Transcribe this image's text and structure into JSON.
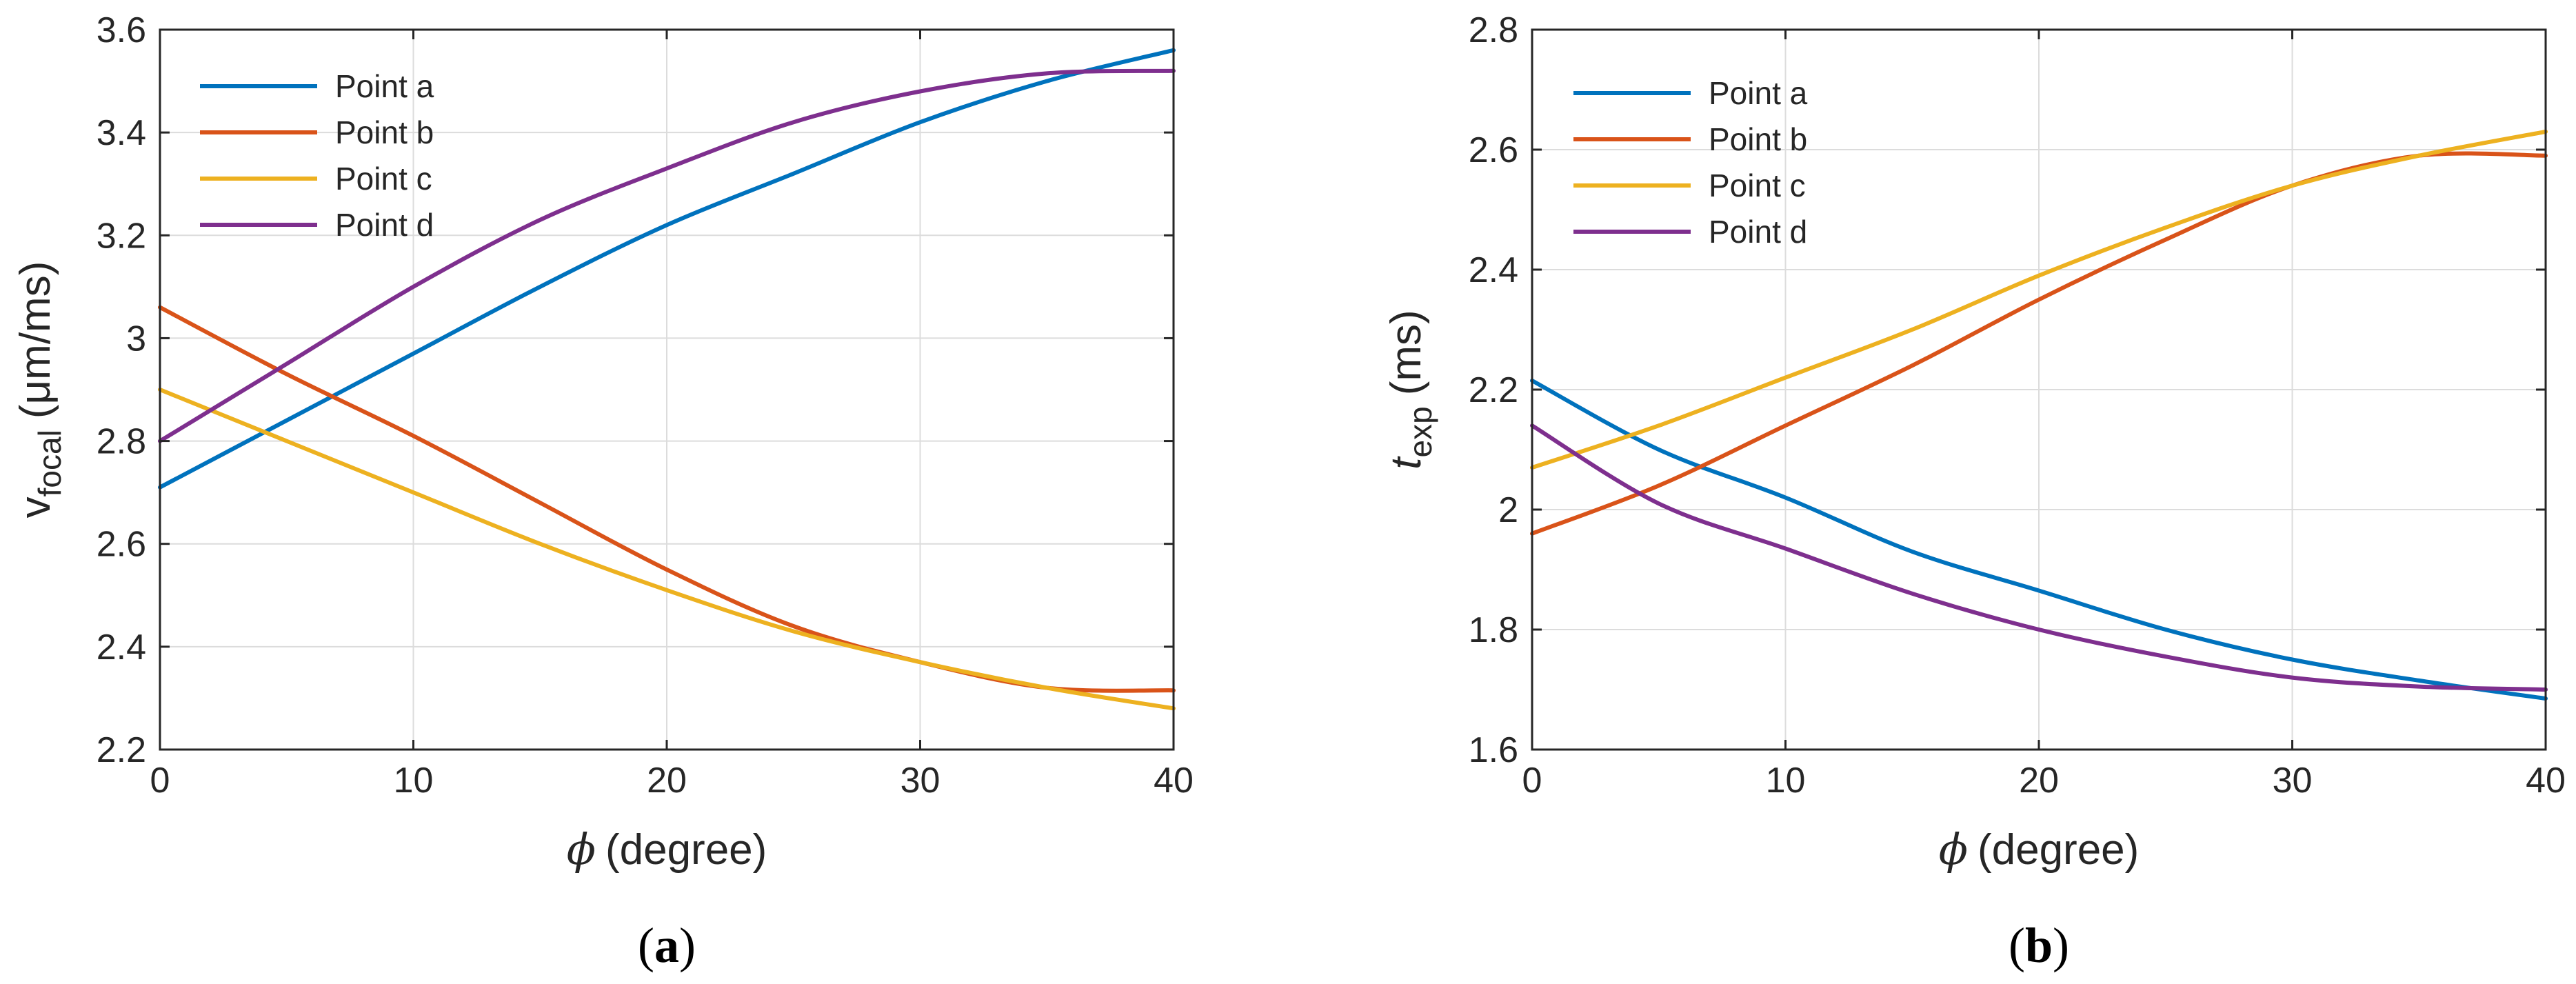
{
  "chart_data": [
    {
      "type": "line",
      "subcaption": "a",
      "xlabel_symbol": "ϕ",
      "xlabel_text": "(degree)",
      "ylabel_main": "v",
      "ylabel_sub": "focal",
      "ylabel_unit": "(μm/ms)",
      "xlim": [
        0,
        40
      ],
      "ylim": [
        2.2,
        3.6
      ],
      "xticks": [
        0,
        10,
        20,
        30,
        40
      ],
      "xtick_labels": [
        "0",
        "10",
        "20",
        "30",
        "40"
      ],
      "yticks": [
        2.2,
        2.4,
        2.6,
        2.8,
        3.0,
        3.2,
        3.4,
        3.6
      ],
      "ytick_labels": [
        "2.2",
        "2.4",
        "2.6",
        "2.8",
        "3",
        "3.2",
        "3.4",
        "3.6"
      ],
      "grid": true,
      "legend_position": "top-left",
      "x": [
        0,
        5,
        10,
        15,
        20,
        25,
        30,
        35,
        40
      ],
      "series": [
        {
          "name": "Point a",
          "color": "#0072BD",
          "values": [
            2.71,
            2.84,
            2.97,
            3.1,
            3.22,
            3.32,
            3.42,
            3.5,
            3.56
          ]
        },
        {
          "name": "Point b",
          "color": "#D95319",
          "values": [
            3.06,
            2.93,
            2.81,
            2.68,
            2.55,
            2.44,
            2.37,
            2.32,
            2.315
          ]
        },
        {
          "name": "Point c",
          "color": "#EDB120",
          "values": [
            2.9,
            2.8,
            2.7,
            2.6,
            2.51,
            2.43,
            2.37,
            2.32,
            2.28
          ]
        },
        {
          "name": "Point d",
          "color": "#7E2F8E",
          "values": [
            2.8,
            2.95,
            3.1,
            3.23,
            3.33,
            3.42,
            3.48,
            3.515,
            3.52
          ]
        }
      ]
    },
    {
      "type": "line",
      "subcaption": "b",
      "xlabel_symbol": "ϕ",
      "xlabel_text": "(degree)",
      "ylabel_main": "t",
      "ylabel_sub": "exp",
      "ylabel_unit": "(ms)",
      "xlim": [
        0,
        40
      ],
      "ylim": [
        1.6,
        2.8
      ],
      "xticks": [
        0,
        10,
        20,
        30,
        40
      ],
      "xtick_labels": [
        "0",
        "10",
        "20",
        "30",
        "40"
      ],
      "yticks": [
        1.6,
        1.8,
        2.0,
        2.2,
        2.4,
        2.6,
        2.8
      ],
      "ytick_labels": [
        "1.6",
        "1.8",
        "2",
        "2.2",
        "2.4",
        "2.6",
        "2.8"
      ],
      "grid": true,
      "legend_position": "top-left",
      "x": [
        0,
        5,
        10,
        15,
        20,
        25,
        30,
        35,
        40
      ],
      "series": [
        {
          "name": "Point a",
          "color": "#0072BD",
          "values": [
            2.215,
            2.1,
            2.02,
            1.93,
            1.865,
            1.8,
            1.75,
            1.715,
            1.685
          ]
        },
        {
          "name": "Point b",
          "color": "#D95319",
          "values": [
            1.96,
            2.04,
            2.14,
            2.24,
            2.35,
            2.45,
            2.54,
            2.59,
            2.59
          ]
        },
        {
          "name": "Point c",
          "color": "#EDB120",
          "values": [
            2.07,
            2.14,
            2.22,
            2.3,
            2.39,
            2.47,
            2.54,
            2.59,
            2.63
          ]
        },
        {
          "name": "Point d",
          "color": "#7E2F8E",
          "values": [
            2.14,
            2.01,
            1.935,
            1.86,
            1.8,
            1.755,
            1.72,
            1.705,
            1.7
          ]
        }
      ]
    }
  ]
}
